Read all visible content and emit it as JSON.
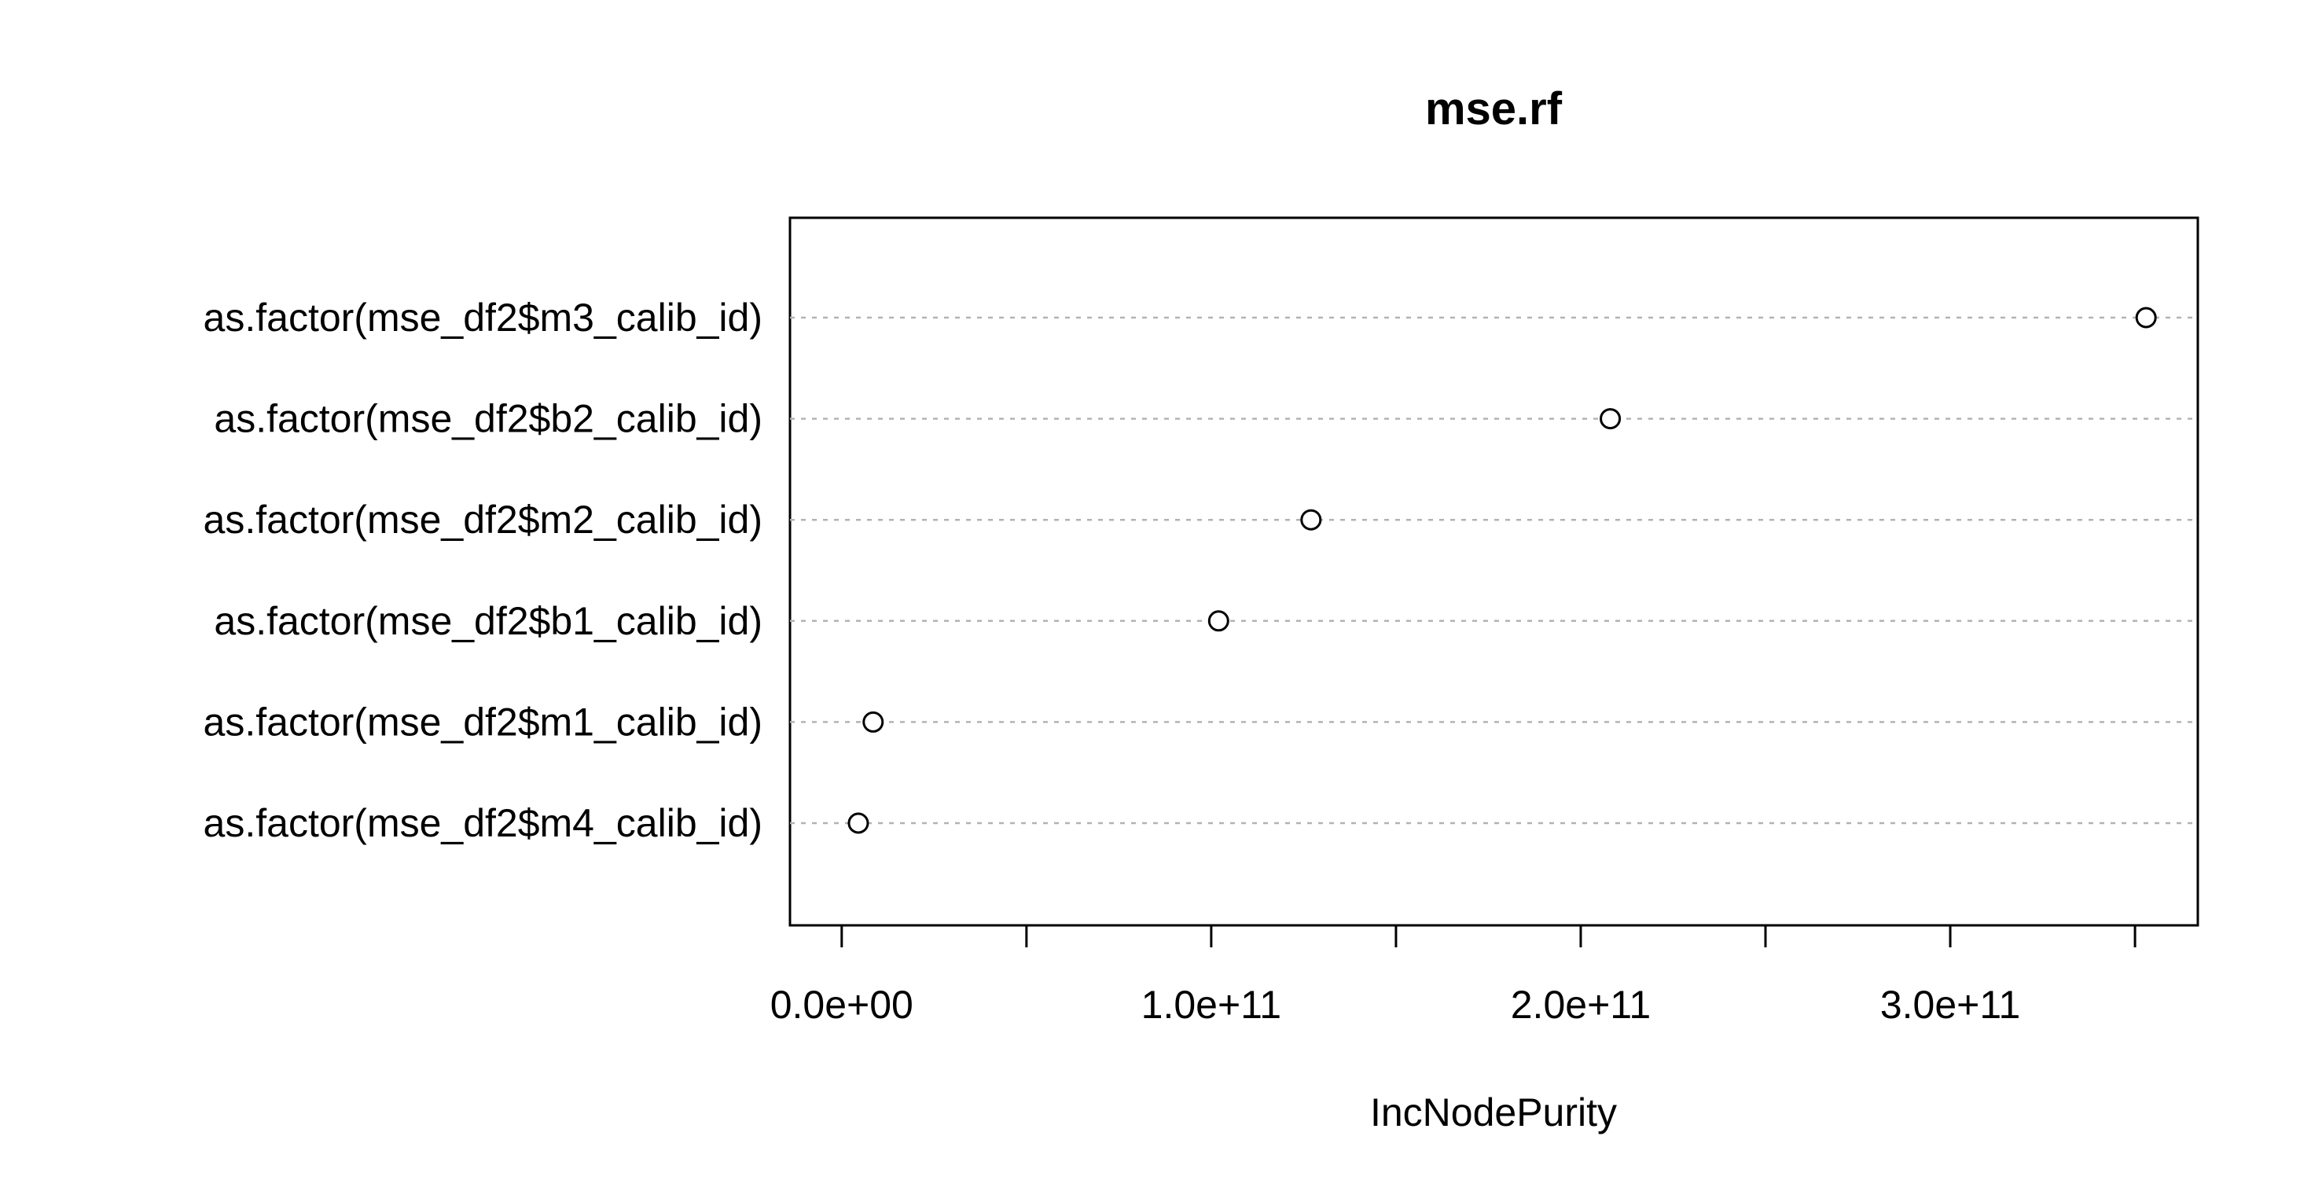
{
  "chart_data": {
    "type": "scatter",
    "title": "mse.rf",
    "xlabel": "IncNodePurity",
    "ylabel": "",
    "xlim": [
      -14000000000.0,
      367000000000.0
    ],
    "x_ticks": [
      0,
      50000000000.0,
      100000000000.0,
      150000000000.0,
      200000000000.0,
      250000000000.0,
      300000000000.0,
      350000000000.0
    ],
    "x_tick_labels": [
      "0.0e+00",
      "",
      "1.0e+11",
      "",
      "2.0e+11",
      "",
      "3.0e+11",
      ""
    ],
    "grid": "dotted horizontal lines at each variable",
    "legend": "none",
    "categories": [
      "as.factor(mse_df2$m3_calib_id)",
      "as.factor(mse_df2$b2_calib_id)",
      "as.factor(mse_df2$m2_calib_id)",
      "as.factor(mse_df2$b1_calib_id)",
      "as.factor(mse_df2$m1_calib_id)",
      "as.factor(mse_df2$m4_calib_id)"
    ],
    "values": [
      353000000000.0,
      208000000000.0,
      127000000000.0,
      102000000000.0,
      8500000000.0,
      4500000000.0
    ]
  }
}
